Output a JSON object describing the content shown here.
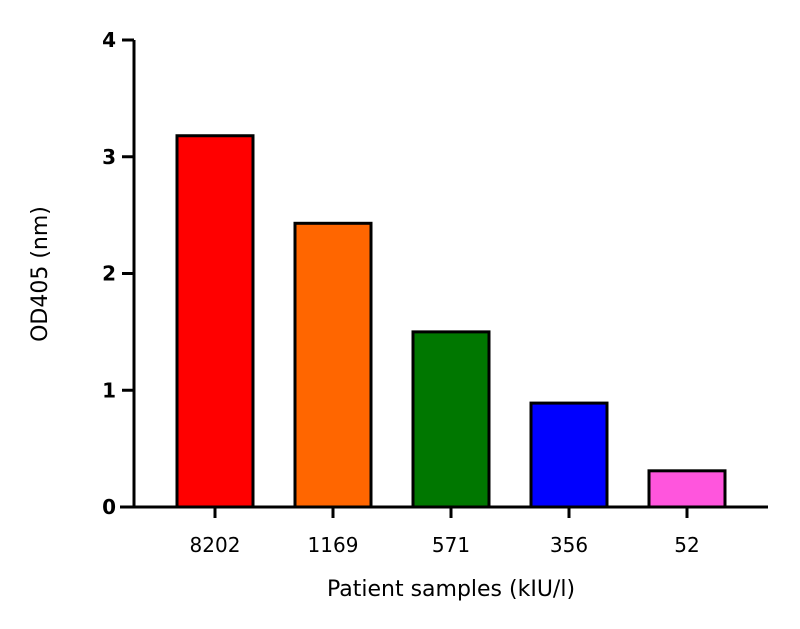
{
  "chart_data": {
    "type": "bar",
    "title": "",
    "xlabel": "Patient samples (kIU/l)",
    "ylabel": "OD405 (nm)",
    "categories": [
      "8202",
      "1169",
      "571",
      "356",
      "52"
    ],
    "values": [
      3.18,
      2.43,
      1.5,
      0.89,
      0.31
    ],
    "colors": [
      "#ff0000",
      "#ff6600",
      "#007700",
      "#0000ff",
      "#ff55dd"
    ],
    "ylim": [
      0,
      4
    ],
    "yticks": [
      "0",
      "1",
      "2",
      "3",
      "4"
    ],
    "grid": false,
    "legend": "none"
  }
}
